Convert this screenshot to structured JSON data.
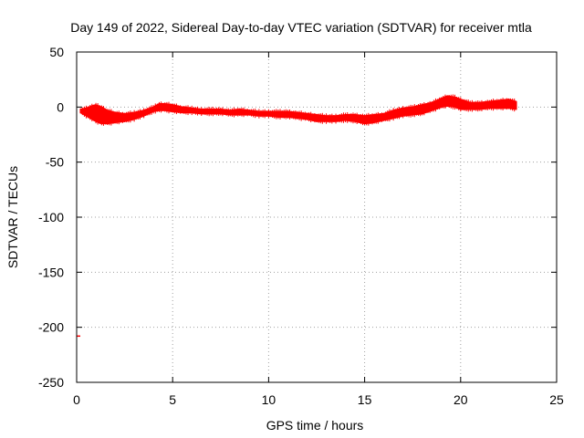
{
  "chart_data": {
    "type": "scatter",
    "title": "Day 149 of 2022, Sidereal Day-to-day VTEC variation (SDTVAR) for receiver mtla",
    "xlabel": "GPS time / hours",
    "ylabel": "SDTVAR / TECUs",
    "xlim": [
      0,
      25
    ],
    "ylim": [
      -250,
      50
    ],
    "xticks": [
      0,
      5,
      10,
      15,
      20,
      25
    ],
    "yticks": [
      -250,
      -200,
      -150,
      -100,
      -50,
      0,
      50
    ],
    "grid": true,
    "series": [
      {
        "name": "SDTVAR",
        "color": "#ff0000",
        "band_x": [
          0.2,
          0.5,
          0.8,
          1.0,
          1.3,
          1.6,
          2.0,
          2.5,
          3.0,
          3.5,
          4.0,
          4.3,
          4.6,
          5.0,
          5.5,
          6.0,
          6.5,
          7.0,
          7.5,
          8.0,
          8.5,
          9.0,
          9.5,
          10.0,
          10.5,
          11.0,
          11.5,
          12.0,
          12.5,
          13.0,
          13.5,
          14.0,
          14.5,
          15.0,
          15.5,
          16.0,
          16.5,
          17.0,
          17.5,
          18.0,
          18.5,
          19.0,
          19.3,
          19.7,
          20.0,
          20.5,
          21.0,
          21.5,
          22.0,
          22.5,
          22.9
        ],
        "band_low": [
          -5,
          -8,
          -11,
          -13,
          -15,
          -15,
          -14,
          -13,
          -11,
          -8,
          -4,
          -3,
          -3,
          -4,
          -5,
          -5,
          -6,
          -6,
          -6,
          -7,
          -7,
          -7,
          -8,
          -8,
          -9,
          -9,
          -10,
          -11,
          -13,
          -13,
          -13,
          -12,
          -13,
          -15,
          -14,
          -12,
          -10,
          -8,
          -7,
          -6,
          -3,
          0,
          1,
          0,
          -2,
          -2,
          -2,
          -1,
          -1,
          -1,
          -2
        ],
        "band_high": [
          -2,
          -1,
          1,
          2,
          0,
          -3,
          -5,
          -6,
          -5,
          -3,
          0,
          3,
          3,
          2,
          0,
          -1,
          -2,
          -2,
          -2,
          -3,
          -2,
          -3,
          -4,
          -4,
          -4,
          -4,
          -5,
          -6,
          -7,
          -8,
          -8,
          -7,
          -7,
          -8,
          -7,
          -6,
          -3,
          -1,
          0,
          2,
          4,
          8,
          10,
          9,
          7,
          4,
          4,
          5,
          6,
          7,
          5
        ],
        "outliers": [
          {
            "x": 0.0,
            "y": -208
          }
        ]
      }
    ]
  }
}
